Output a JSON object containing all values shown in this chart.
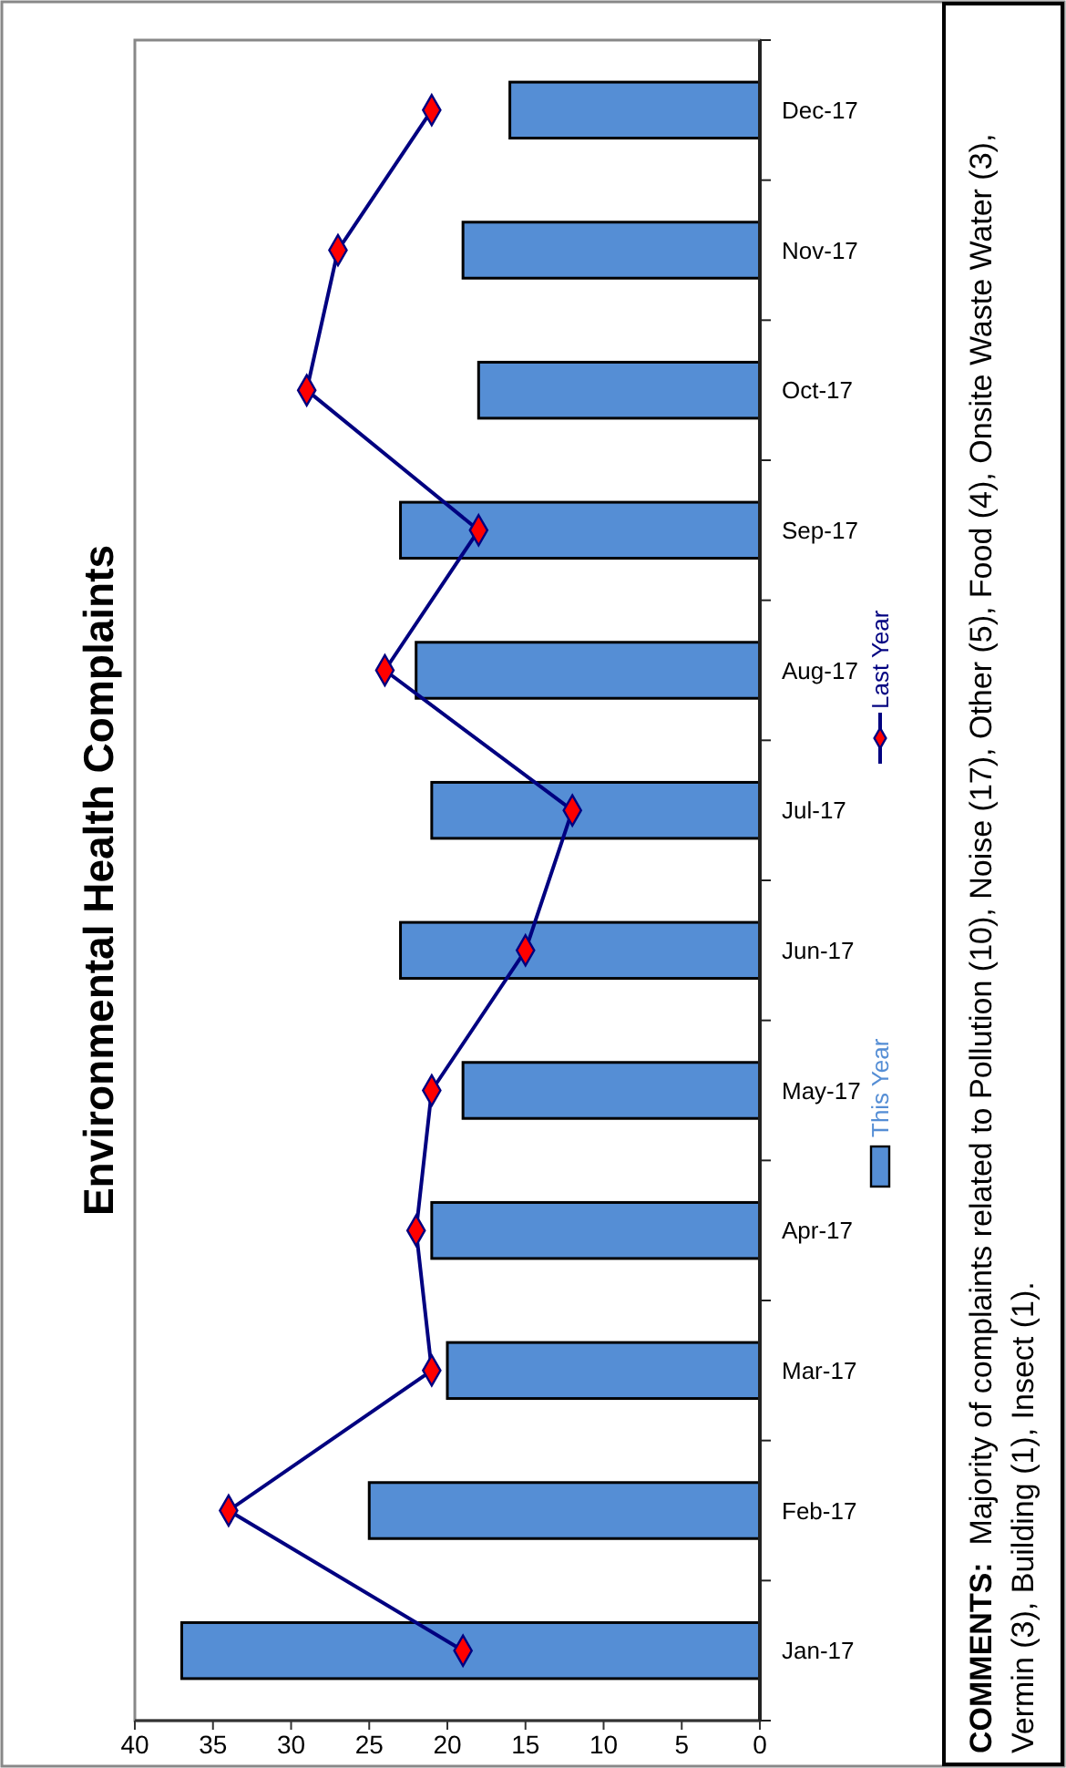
{
  "chart_data": {
    "type": "bar",
    "orientation": "horizontal",
    "title": "Environmental Health Complaints",
    "categories": [
      "Dec-17",
      "Nov-17",
      "Oct-17",
      "Sep-17",
      "Aug-17",
      "Jul-17",
      "Jun-17",
      "May-17",
      "Apr-17",
      "Mar-17",
      "Feb-17",
      "Jan-17"
    ],
    "series": [
      {
        "name": "This Year",
        "color": "#558ed5",
        "values": [
          16,
          19,
          18,
          23,
          22,
          21,
          23,
          19,
          21,
          20,
          25,
          37
        ]
      },
      {
        "name": "Last Year",
        "type": "line",
        "color": "#000080",
        "values": [
          21,
          27,
          29,
          18,
          24,
          12,
          15,
          21,
          22,
          21,
          34,
          19
        ]
      }
    ],
    "xlim": [
      40,
      0
    ],
    "xticks": [
      40,
      35,
      30,
      25,
      20,
      15,
      10,
      5,
      0
    ],
    "grid": false,
    "legend": "right",
    "marker": "diamond",
    "line_style": "solid",
    "annotations": [
      "COMMENTS:  Majority of complaints related to Pollution (10), Noise (17), Other (5), Food (4), Onsite Waste Water (3), Vermin (3), Building (1), Insect (1)."
    ]
  }
}
